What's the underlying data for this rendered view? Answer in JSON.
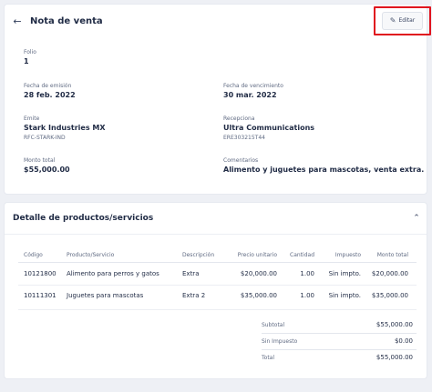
{
  "header": {
    "back_icon": "arrow-left-icon",
    "title": "Nota de venta",
    "edit_icon": "pencil-icon",
    "edit_label": "Editar"
  },
  "fields": {
    "folio": {
      "label": "Folio",
      "value": "1"
    },
    "issue_date": {
      "label": "Fecha de emisión",
      "value": "28 feb. 2022"
    },
    "due_date": {
      "label": "Fecha de vencimiento",
      "value": "30 mar. 2022"
    },
    "issuer": {
      "label": "Emite",
      "name": "Stark Industries MX",
      "rfc": "RFC-STARK-IND"
    },
    "receiver": {
      "label": "Recepciona",
      "name": "Ultra Communications",
      "rfc": "ERE303215T44"
    },
    "total": {
      "label": "Monto total",
      "value": "$55,000.00"
    },
    "comments": {
      "label": "Comentarios",
      "value": "Alimento y juguetes para mascotas, venta extra."
    }
  },
  "detail": {
    "title": "Detalle de productos/servicios",
    "collapse_icon": "chevron-up-icon",
    "columns": {
      "code": "Código",
      "product": "Producto/Servicio",
      "description": "Descripción",
      "unit_price": "Precio unitario",
      "quantity": "Cantidad",
      "tax": "Impuesto",
      "amount": "Monto total"
    },
    "rows": [
      {
        "code": "10121800",
        "product": "Alimento para perros y gatos",
        "description": "Extra",
        "unit_price": "$20,000.00",
        "quantity": "1.00",
        "tax": "Sin impto.",
        "amount": "$20,000.00"
      },
      {
        "code": "10111301",
        "product": "Juguetes para mascotas",
        "description": "Extra 2",
        "unit_price": "$35,000.00",
        "quantity": "1.00",
        "tax": "Sin impto.",
        "amount": "$35,000.00"
      }
    ],
    "summary": {
      "subtotal_label": "Subtotal",
      "subtotal_value": "$55,000.00",
      "tax_label": "Sin Impuesto",
      "tax_value": "$0.00",
      "total_label": "Total",
      "total_value": "$55,000.00"
    }
  },
  "colors": {
    "accent_highlight": "#e0141e",
    "background": "#eef0f5",
    "card": "#ffffff",
    "text_primary": "#1f2a44",
    "text_secondary": "#5f6a82"
  }
}
